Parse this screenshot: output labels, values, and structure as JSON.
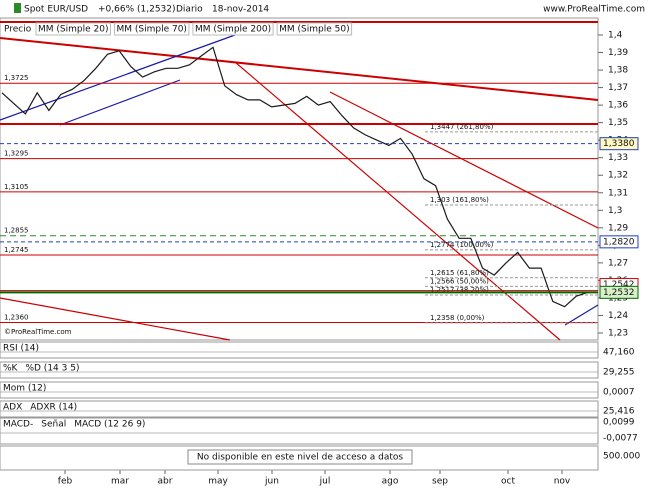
{
  "chart_data": {
    "type": "line",
    "title": "Spot EUR/USD",
    "change": "+0,66% (1,2532)",
    "period": "Diario",
    "date": "18-nov-2014",
    "source": "www.ProRealTime.com",
    "copyright": "©ProRealTime.com",
    "y_label": "Precio",
    "legend": [
      {
        "name": "MM (Simple 20)",
        "color": "#cc0000"
      },
      {
        "name": "MM (Simple 70)",
        "color": "#1a1a9a"
      },
      {
        "name": "MM (Simple 200)",
        "color": "#5a6a1a"
      },
      {
        "name": "MM (Simple 50)",
        "color": "#b0b0d8"
      }
    ],
    "series": [
      {
        "name": "EUR/USD",
        "color": "#1a1a1a",
        "values": [
          1.367,
          1.361,
          1.355,
          1.367,
          1.357,
          1.366,
          1.369,
          1.374,
          1.381,
          1.389,
          1.391,
          1.382,
          1.376,
          1.379,
          1.381,
          1.381,
          1.383,
          1.388,
          1.393,
          1.371,
          1.366,
          1.363,
          1.363,
          1.359,
          1.36,
          1.361,
          1.365,
          1.36,
          1.362,
          1.354,
          1.347,
          1.343,
          1.34,
          1.337,
          1.341,
          1.332,
          1.318,
          1.314,
          1.295,
          1.284,
          1.284,
          1.267,
          1.263,
          1.27,
          1.276,
          1.267,
          1.267,
          1.248,
          1.245,
          1.251,
          1.2532
        ]
      }
    ],
    "ylim": [
      1.226,
      1.4097
    ],
    "yticks": [
      {
        "value": 1.4,
        "label": "1,4"
      },
      {
        "value": 1.39,
        "label": "1,39"
      },
      {
        "value": 1.38,
        "label": "1,38"
      },
      {
        "value": 1.37,
        "label": "1,37"
      },
      {
        "value": 1.36,
        "label": "1,36"
      },
      {
        "value": 1.35,
        "label": "1,35"
      },
      {
        "value": 1.34,
        "label": "1,34"
      },
      {
        "value": 1.33,
        "label": "1,33"
      },
      {
        "value": 1.32,
        "label": "1,32"
      },
      {
        "value": 1.31,
        "label": "1,31"
      },
      {
        "value": 1.3,
        "label": "1,3"
      },
      {
        "value": 1.29,
        "label": "1,29"
      },
      {
        "value": 1.28,
        "label": "1,28"
      },
      {
        "value": 1.27,
        "label": "1,27"
      },
      {
        "value": 1.26,
        "label": "1,26"
      },
      {
        "value": 1.25,
        "label": "1,25"
      },
      {
        "value": 1.24,
        "label": "1,24"
      },
      {
        "value": 1.23,
        "label": "1,23"
      }
    ],
    "price_labels": [
      {
        "value": 1.338,
        "label": "1,3380",
        "color": "#2040c0",
        "fill": "#fff8c0"
      },
      {
        "value": 1.282,
        "label": "1,2820",
        "color": "#2040c0",
        "fill": "#ffffff"
      },
      {
        "value": 1.2542,
        "label": "1,2542",
        "color": "#cc0000",
        "fill": "#ffffff"
      },
      {
        "value": 1.2532,
        "label": "1,2532",
        "color": "#006600",
        "fill": "#d8f0c8"
      }
    ],
    "levels": [
      {
        "value": 1.3725,
        "label": "1,3725"
      },
      {
        "value": 1.3295,
        "label": "1,3295"
      },
      {
        "value": 1.3105,
        "label": "1,3105"
      },
      {
        "value": 1.2855,
        "label": "1,2855"
      },
      {
        "value": 1.2745,
        "label": "1,2745"
      },
      {
        "value": 1.236,
        "label": "1,2360"
      }
    ],
    "fib": [
      {
        "value": 1.3447,
        "label": "1,3447 (261,80%)"
      },
      {
        "value": 1.303,
        "label": "1,303 (161,80%)"
      },
      {
        "value": 1.2774,
        "label": "1,2774 (100,00%)"
      },
      {
        "value": 1.2615,
        "label": "1,2615 (61,80%)"
      },
      {
        "value": 1.2566,
        "label": "1,2566 (50,00%)"
      },
      {
        "value": 1.2517,
        "label": "1,2517 (38,20%)"
      },
      {
        "value": 1.2358,
        "label": "1,2358 (0,00%)"
      }
    ],
    "months": [
      "feb",
      "mar",
      "abr",
      "may",
      "jun",
      "jul",
      "ago",
      "sep",
      "oct",
      "nov"
    ],
    "indicators": [
      {
        "names": [
          "RSI (14)"
        ],
        "reading": {
          "value": 47.16,
          "label": "47,160"
        }
      },
      {
        "names": [
          "%K",
          "%D (14 3 5)"
        ],
        "reading": {
          "value": 29.255,
          "label": "29,255"
        }
      },
      {
        "names": [
          "Mom (12)"
        ],
        "reading": {
          "value": 0.0007,
          "label": "0,0007"
        }
      },
      {
        "names": [
          "ADX",
          "ADXR (14)"
        ],
        "reading": {
          "value": 25.416,
          "label": "25,416"
        }
      },
      {
        "names": [
          "MACD-",
          "Señal",
          "MACD (12 26 9)"
        ],
        "reading": {
          "value": -0.0077,
          "label": "-0,0077"
        },
        "upper": {
          "value": 0.0099,
          "label": "0,0099"
        }
      }
    ],
    "notice": "No disponible en este nivel de acceso a datos",
    "volume_label": {
      "value": 500000,
      "label": "500.000"
    }
  }
}
